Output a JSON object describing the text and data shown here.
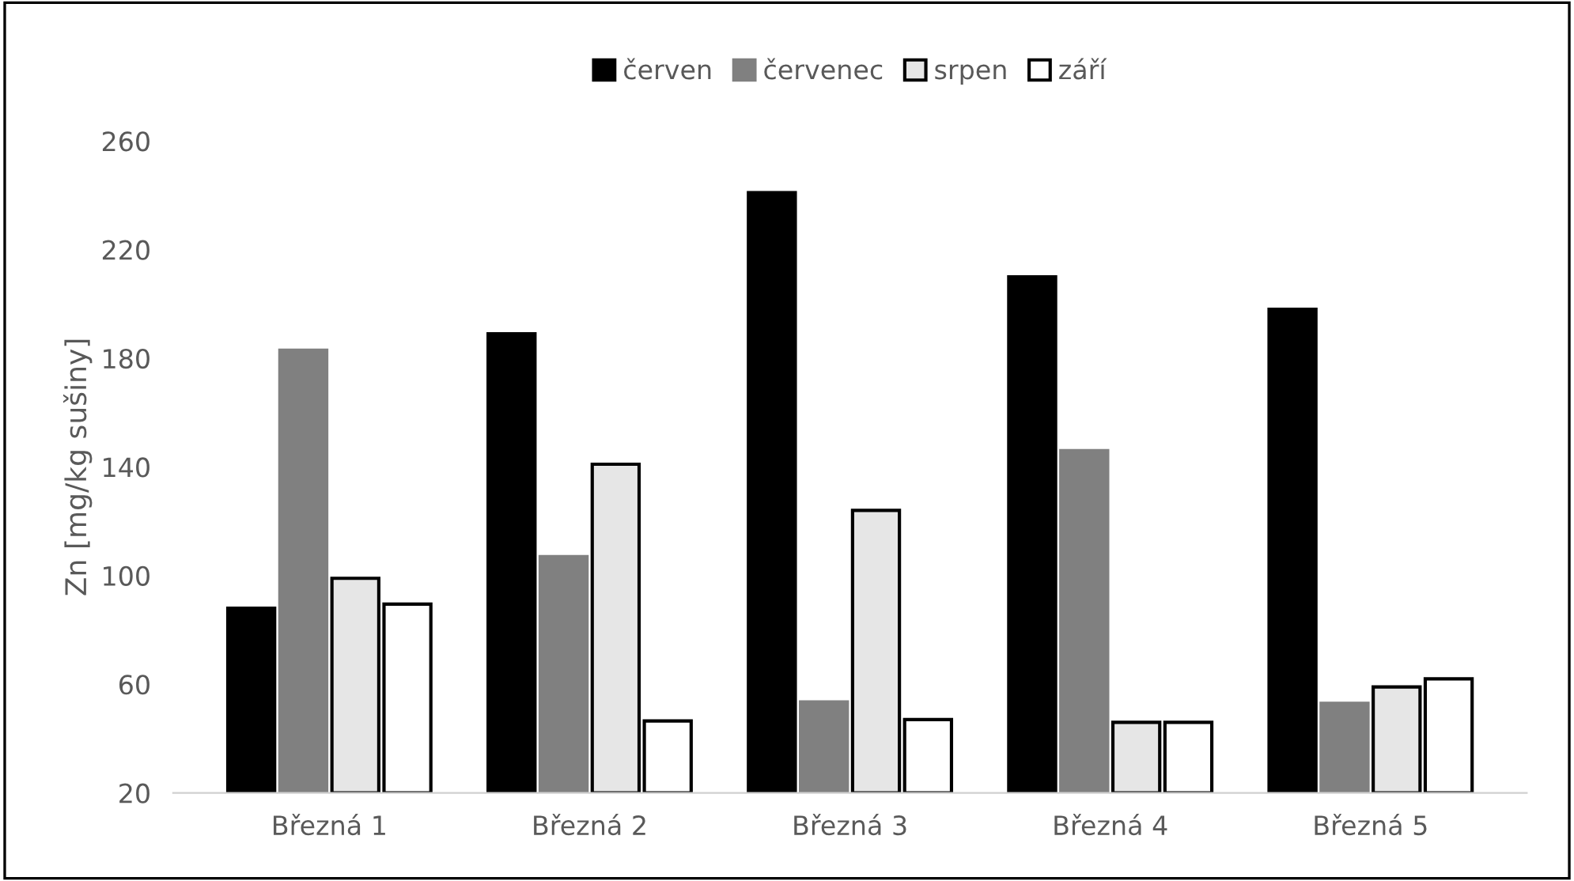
{
  "chart_data": {
    "type": "bar",
    "ylabel": "Zn [mg/kg sušiny]",
    "categories": [
      "Březná 1",
      "Březná 2",
      "Březná 3",
      "Březná 4",
      "Březná 5"
    ],
    "series": [
      {
        "name": "červen",
        "color": "#000000",
        "values": [
          88,
          189,
          241,
          210,
          198
        ]
      },
      {
        "name": "červenec",
        "color": "#808080",
        "values": [
          183,
          107,
          53.5,
          146,
          53
        ]
      },
      {
        "name": "srpen",
        "color": "#e6e6e6",
        "values": [
          99,
          141,
          124,
          46,
          59
        ]
      },
      {
        "name": "září",
        "color": "#ffffff",
        "values": [
          89.5,
          46.5,
          47,
          46,
          62
        ]
      }
    ],
    "ylim": [
      20,
      260
    ],
    "yticks": [
      20,
      60,
      100,
      140,
      180,
      220,
      260
    ],
    "grid": false,
    "legend": "top"
  }
}
